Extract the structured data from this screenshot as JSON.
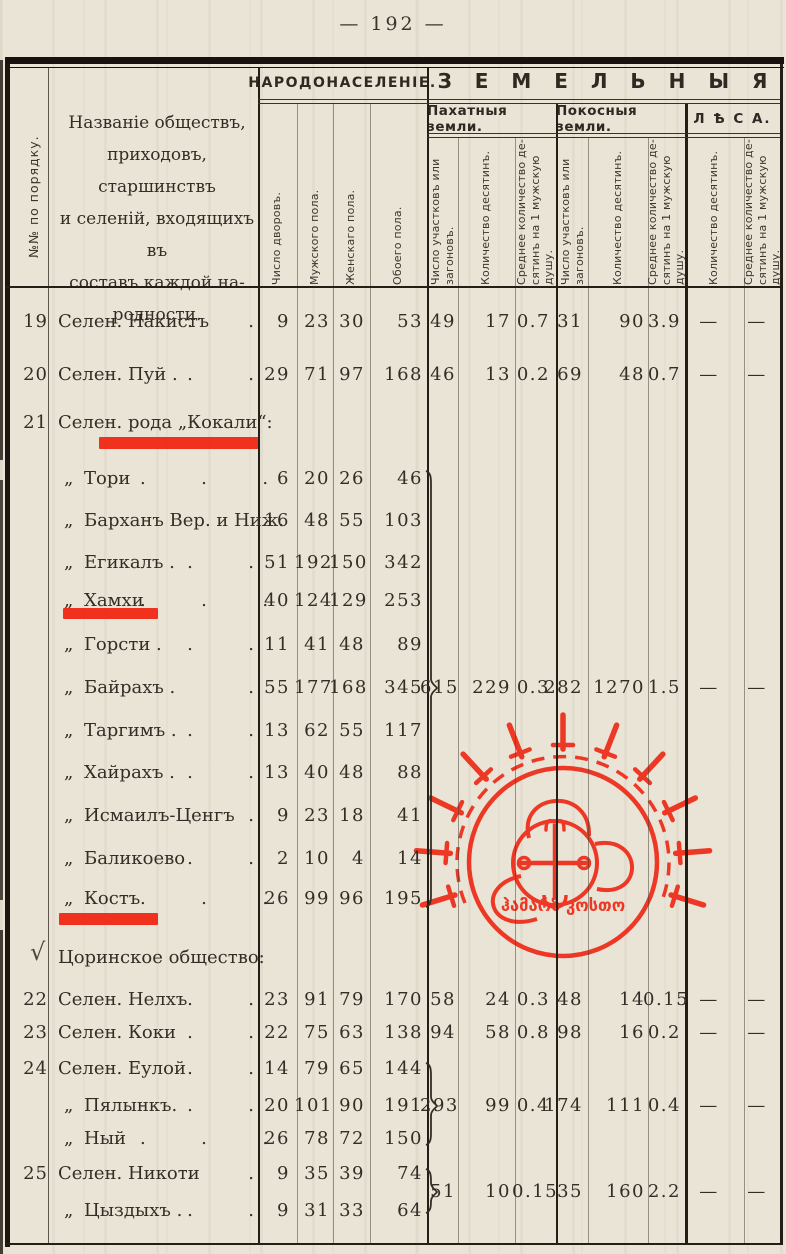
{
  "page": {
    "number_display": "— 192 —"
  },
  "table": {
    "header": {
      "num_col": "№№ по порядку.",
      "name_col": "Названіе обществъ,\nприходовъ, старшинствъ\nи селеній, входящихъ въ\nсоставъ каждой на-\nродности.",
      "group_population": "НАРОДОНАСЕЛЕНІЕ.",
      "group_land": "З Е М Е Л Ь Н Ы Я",
      "subgroup_arable": "Пахатныя земли.",
      "subgroup_hay": "Покосныя земли.",
      "subgroup_forest": "Л Ѣ С А.",
      "columns": [
        "Число дворовъ.",
        "Мужского пола.",
        "Женскаго пола.",
        "Обоего пола.",
        "Число участковъ или\nзагоновъ.",
        "Количество десятинъ.",
        "Среднее количество де-\nсятинъ на 1 мужскую\nдушу.",
        "Число участковъ или\nзагоновъ.",
        "Количество десятинъ.",
        "Среднее количество де-\nсятинъ на 1 мужскую\nдушу.",
        "Количество десятинъ.",
        "Среднее количество де-\nсятинъ на 1 мужскую\nдушу."
      ]
    },
    "rows": [
      {
        "no": "19",
        "name": "Селен. Накистъ",
        "dots": ".  .",
        "v": [
          "9",
          "23",
          "30",
          "53",
          "49",
          "17",
          "0.7",
          "31",
          "90",
          "3.9",
          "—",
          "—"
        ]
      },
      {
        "no": "20",
        "name": "Селен. Пуй .",
        "dots": ".  .",
        "v": [
          "29",
          "71",
          "97",
          "168",
          "46",
          "13",
          "0.2",
          "69",
          "48",
          "0.7",
          "—",
          "—"
        ]
      },
      {
        "no": "21",
        "type": "heading",
        "name": "Селен. рода „Кокали“:"
      },
      {
        "q": "„",
        "name": "Тори",
        "dots": ".  .  .",
        "v": [
          "6",
          "20",
          "26",
          "46"
        ]
      },
      {
        "q": "„",
        "name": "Барханъ Вер. и Ниж.",
        "v": [
          "16",
          "48",
          "55",
          "103"
        ]
      },
      {
        "q": "„",
        "name": "Егикалъ .",
        "dots": ".  .",
        "v": [
          "51",
          "192",
          "150",
          "342"
        ]
      },
      {
        "q": "„",
        "name": "Хамхи",
        "dots": ".  .  .",
        "v": [
          "40",
          "124",
          "129",
          "253"
        ]
      },
      {
        "q": "„",
        "name": "Горсти .",
        "dots": ".  .",
        "v": [
          "11",
          "41",
          "48",
          "89"
        ]
      },
      {
        "q": "„",
        "name": "Байрахъ .",
        "dots": ".",
        "v": [
          "55",
          "177",
          "168",
          "345",
          "615",
          "229",
          "0.3",
          "282",
          "1270",
          "1.5",
          "—",
          "—"
        ]
      },
      {
        "q": "„",
        "name": "Таргимъ .",
        "dots": ".  .",
        "v": [
          "13",
          "62",
          "55",
          "117"
        ]
      },
      {
        "q": "„",
        "name": "Хайрахъ .",
        "dots": ".  .",
        "v": [
          "13",
          "40",
          "48",
          "88"
        ]
      },
      {
        "q": "„",
        "name": "Исмаилъ-Ценгъ",
        "dots": ".",
        "v": [
          "9",
          "23",
          "18",
          "41"
        ]
      },
      {
        "q": "„",
        "name": "Баликоево",
        "dots": ".  .",
        "v": [
          "2",
          "10",
          "4",
          "14"
        ]
      },
      {
        "q": "„",
        "name": "Костъ",
        "dots": ".  .  .",
        "v": [
          "26",
          "99",
          "96",
          "195"
        ]
      },
      {
        "type": "heading",
        "check": "√",
        "name": "Цоринское общество:"
      },
      {
        "no": "22",
        "name": "Селен. Нелхъ",
        "dots": ".  .",
        "v": [
          "23",
          "91",
          "79",
          "170",
          "58",
          "24",
          "0.3",
          "48",
          "14",
          "0.15",
          "—",
          "—"
        ]
      },
      {
        "no": "23",
        "name": "Селен. Коки",
        "dots": ".  .",
        "v": [
          "22",
          "75",
          "63",
          "138",
          "94",
          "58",
          "0.8",
          "98",
          "16",
          "0.2",
          "—",
          "—"
        ]
      },
      {
        "no": "24",
        "name": "Селен. Еулой",
        "dots": ".  .",
        "v": [
          "14",
          "79",
          "65",
          "144"
        ]
      },
      {
        "q": "„",
        "name": "Пялынкъ.",
        "dots": ".  .",
        "v": [
          "20",
          "101",
          "90",
          "191",
          "293",
          "99",
          "0.4",
          "174",
          "111",
          "0.4",
          "—",
          "—"
        ]
      },
      {
        "q": "„",
        "name": "Ный",
        "dots": ".  .  .",
        "v": [
          "26",
          "78",
          "72",
          "150"
        ]
      },
      {
        "no": "25",
        "name": "Селен. Никоти",
        "dots": ".  .",
        "v": [
          "9",
          "35",
          "39",
          "74"
        ]
      },
      {
        "type": "values",
        "v": [
          "",
          "",
          "",
          "",
          "51",
          "10",
          "0.15",
          "35",
          "160",
          "2.2",
          "—",
          "—"
        ]
      },
      {
        "q": "„",
        "name": "Цыздыхъ .",
        "dots": ".  .",
        "v": [
          "9",
          "31",
          "33",
          "64"
        ]
      }
    ]
  },
  "annotations": {
    "red_color": "#ef2310",
    "stamp_text": "ჰამარზ კოსთო"
  }
}
